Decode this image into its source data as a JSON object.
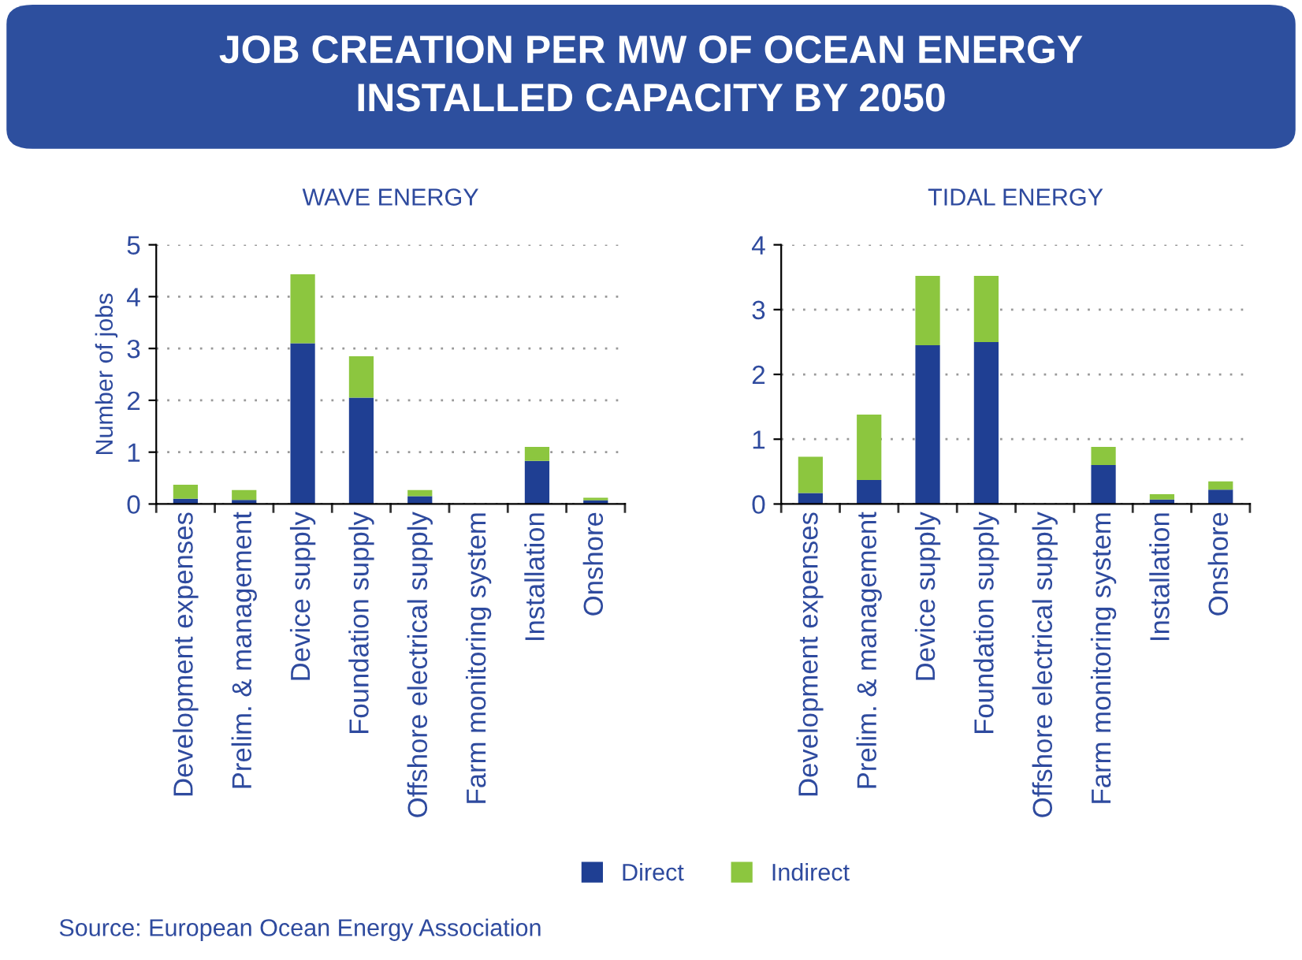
{
  "chart_data": [
    {
      "type": "bar",
      "stacked": true,
      "title": "JOB CREATION PER MW OF OCEAN ENERGY\nINSTALLED CAPACITY BY 2050",
      "subtitle": "WAVE ENERGY",
      "ylabel": "Number of jobs",
      "categories": [
        "Development expenses",
        "Prelim. & management",
        "Device supply",
        "Foundation supply",
        "Offshore electrical supply",
        "Farm monitoring system",
        "Installation",
        "Onshore"
      ],
      "series": [
        {
          "name": "Direct",
          "color": "#1f3f93",
          "values": [
            0.1,
            0.08,
            3.1,
            2.05,
            0.15,
            0,
            0.83,
            0.07
          ]
        },
        {
          "name": "Indirect",
          "color": "#8cc63f",
          "values": [
            0.27,
            0.19,
            1.33,
            0.8,
            0.12,
            0,
            0.27,
            0.05
          ]
        }
      ],
      "ylim": [
        0,
        5
      ],
      "yticks": [
        0,
        1,
        2,
        3,
        4,
        5
      ],
      "grid": "y",
      "legend": "bottom",
      "annotations": [
        "Source: European Ocean Energy Association"
      ]
    },
    {
      "type": "bar",
      "stacked": true,
      "subtitle": "TIDAL ENERGY",
      "categories": [
        "Development expenses",
        "Prelim. & management",
        "Device supply",
        "Foundation supply",
        "Offshore electrical supply",
        "Farm monitoring system",
        "Installation",
        "Onshore"
      ],
      "series": [
        {
          "color": "#1f3f93",
          "values": [
            0.17,
            0.37,
            2.45,
            2.5,
            0,
            0.6,
            0.07,
            0.22
          ]
        },
        {
          "color": "#8cc63f",
          "values": [
            0.56,
            1.01,
            1.07,
            1.02,
            0,
            0.28,
            0.08,
            0.13
          ]
        }
      ],
      "ylim": [
        0,
        4
      ],
      "yticks": [
        0,
        1,
        2,
        3,
        4
      ],
      "grid": "y"
    }
  ]
}
